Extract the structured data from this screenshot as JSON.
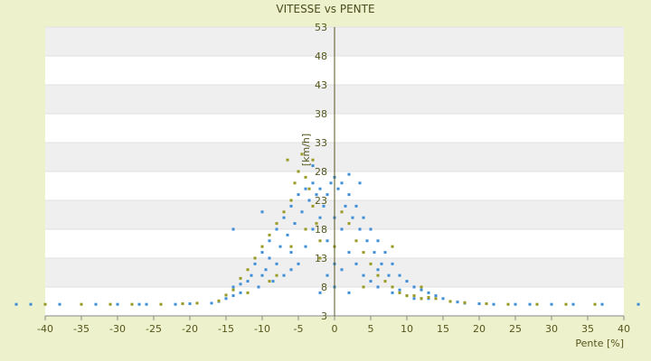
{
  "chart_data": {
    "type": "scatter",
    "title": "VITESSE vs PENTE",
    "xlabel": "Pente [%]",
    "ylabel": "[km/h]",
    "xlim": [
      -40,
      40
    ],
    "ylim": [
      3,
      53
    ],
    "xticks": [
      -40,
      -35,
      -30,
      -25,
      -20,
      -15,
      -10,
      -5,
      0,
      5,
      10,
      15,
      20,
      25,
      30,
      35,
      40
    ],
    "yticks": [
      3,
      8,
      13,
      18,
      23,
      28,
      33,
      38,
      43,
      48,
      53
    ],
    "grid": "horizontal bands",
    "legend": "none",
    "series": [
      {
        "color": "#3F8FD8",
        "points": [
          [
            -44,
            5
          ],
          [
            -42,
            5
          ],
          [
            -38,
            5
          ],
          [
            -33,
            5
          ],
          [
            -30,
            5
          ],
          [
            -27,
            5
          ],
          [
            -26,
            5
          ],
          [
            -22,
            5
          ],
          [
            -20,
            5.1
          ],
          [
            -17,
            5.2
          ],
          [
            -16,
            5.5
          ],
          [
            -15,
            6
          ],
          [
            -14,
            6.5
          ],
          [
            -14,
            8
          ],
          [
            -13,
            8.5
          ],
          [
            -13,
            7
          ],
          [
            -12,
            9
          ],
          [
            -11.5,
            10
          ],
          [
            -11,
            12
          ],
          [
            -10.5,
            8
          ],
          [
            -10,
            14
          ],
          [
            -10,
            10
          ],
          [
            -9.5,
            11
          ],
          [
            -9,
            16
          ],
          [
            -9,
            13
          ],
          [
            -8.5,
            9
          ],
          [
            -8,
            18
          ],
          [
            -8,
            12
          ],
          [
            -7.5,
            15
          ],
          [
            -7,
            20
          ],
          [
            -7,
            10
          ],
          [
            -6.5,
            17
          ],
          [
            -6,
            22
          ],
          [
            -6,
            14
          ],
          [
            -5.5,
            19
          ],
          [
            -5,
            24
          ],
          [
            -5,
            12
          ],
          [
            -4.5,
            21
          ],
          [
            -4,
            25
          ],
          [
            -4,
            15
          ],
          [
            -3.5,
            23
          ],
          [
            -3,
            26
          ],
          [
            -3,
            18
          ],
          [
            -2.5,
            24
          ],
          [
            -2,
            25
          ],
          [
            -2,
            20
          ],
          [
            -1.5,
            22
          ],
          [
            -1,
            24
          ],
          [
            -1,
            16
          ],
          [
            -0.5,
            26
          ],
          [
            0,
            27
          ],
          [
            0,
            20
          ],
          [
            0,
            12
          ],
          [
            0,
            8
          ],
          [
            0.5,
            25
          ],
          [
            1,
            26
          ],
          [
            1,
            18
          ],
          [
            1.5,
            22
          ],
          [
            2,
            24
          ],
          [
            2,
            14
          ],
          [
            2.5,
            20
          ],
          [
            3,
            22
          ],
          [
            3,
            12
          ],
          [
            3.5,
            18
          ],
          [
            4,
            20
          ],
          [
            4,
            10
          ],
          [
            4.5,
            16
          ],
          [
            5,
            18
          ],
          [
            5,
            9
          ],
          [
            5.5,
            14
          ],
          [
            6,
            16
          ],
          [
            6,
            8
          ],
          [
            6.5,
            12
          ],
          [
            7,
            14
          ],
          [
            7.5,
            10
          ],
          [
            8,
            12
          ],
          [
            8,
            7
          ],
          [
            9,
            10
          ],
          [
            9,
            7.5
          ],
          [
            10,
            9
          ],
          [
            10,
            6.5
          ],
          [
            11,
            8
          ],
          [
            11,
            6
          ],
          [
            12,
            7.5
          ],
          [
            12,
            6
          ],
          [
            13,
            7
          ],
          [
            13,
            6
          ],
          [
            14,
            6.5
          ],
          [
            15,
            6
          ],
          [
            16,
            5.5
          ],
          [
            17,
            5.4
          ],
          [
            18,
            5.2
          ],
          [
            20,
            5.1
          ],
          [
            22,
            5
          ],
          [
            25,
            5
          ],
          [
            27,
            5
          ],
          [
            30,
            5
          ],
          [
            33,
            5
          ],
          [
            37,
            5
          ],
          [
            42,
            5
          ],
          [
            3.5,
            26
          ],
          [
            -3,
            29
          ],
          [
            -10,
            21
          ],
          [
            -14,
            18
          ],
          [
            2,
            27.5
          ],
          [
            -6,
            11
          ],
          [
            6,
            11
          ],
          [
            -1,
            10
          ],
          [
            1,
            11
          ],
          [
            -2,
            7
          ],
          [
            2,
            7
          ]
        ]
      },
      {
        "color": "#9A9A22",
        "points": [
          [
            -40,
            5
          ],
          [
            -35,
            5
          ],
          [
            -31,
            5
          ],
          [
            -28,
            5
          ],
          [
            -24,
            5
          ],
          [
            -21,
            5.1
          ],
          [
            -19,
            5.2
          ],
          [
            -16,
            5.6
          ],
          [
            -15,
            6.6
          ],
          [
            -14,
            7.5
          ],
          [
            -13,
            9.5
          ],
          [
            -12,
            11
          ],
          [
            -11,
            13
          ],
          [
            -10,
            15
          ],
          [
            -9,
            17
          ],
          [
            -8,
            19
          ],
          [
            -7,
            21
          ],
          [
            -6,
            23
          ],
          [
            -5.5,
            26
          ],
          [
            -5,
            28
          ],
          [
            -4.5,
            31
          ],
          [
            -4,
            27
          ],
          [
            -3.5,
            25
          ],
          [
            -3,
            22
          ],
          [
            -2.5,
            19
          ],
          [
            -2,
            16
          ],
          [
            -8,
            10
          ],
          [
            -6,
            15
          ],
          [
            -4,
            18
          ],
          [
            -2,
            13
          ],
          [
            0,
            15
          ],
          [
            1,
            21
          ],
          [
            2,
            19
          ],
          [
            3,
            16
          ],
          [
            4,
            14
          ],
          [
            5,
            12
          ],
          [
            6,
            10
          ],
          [
            7,
            9
          ],
          [
            8,
            8
          ],
          [
            9,
            7
          ],
          [
            10,
            6.5
          ],
          [
            11,
            6.5
          ],
          [
            12,
            6
          ],
          [
            13,
            6.2
          ],
          [
            14,
            6
          ],
          [
            16,
            5.5
          ],
          [
            18,
            5.3
          ],
          [
            21,
            5.1
          ],
          [
            24,
            5
          ],
          [
            28,
            5
          ],
          [
            32,
            5
          ],
          [
            36,
            5
          ],
          [
            -6.5,
            30
          ],
          [
            -3,
            30
          ],
          [
            -9,
            9
          ],
          [
            4,
            8
          ],
          [
            8,
            15
          ],
          [
            -12,
            7
          ],
          [
            12,
            8
          ]
        ]
      }
    ]
  }
}
